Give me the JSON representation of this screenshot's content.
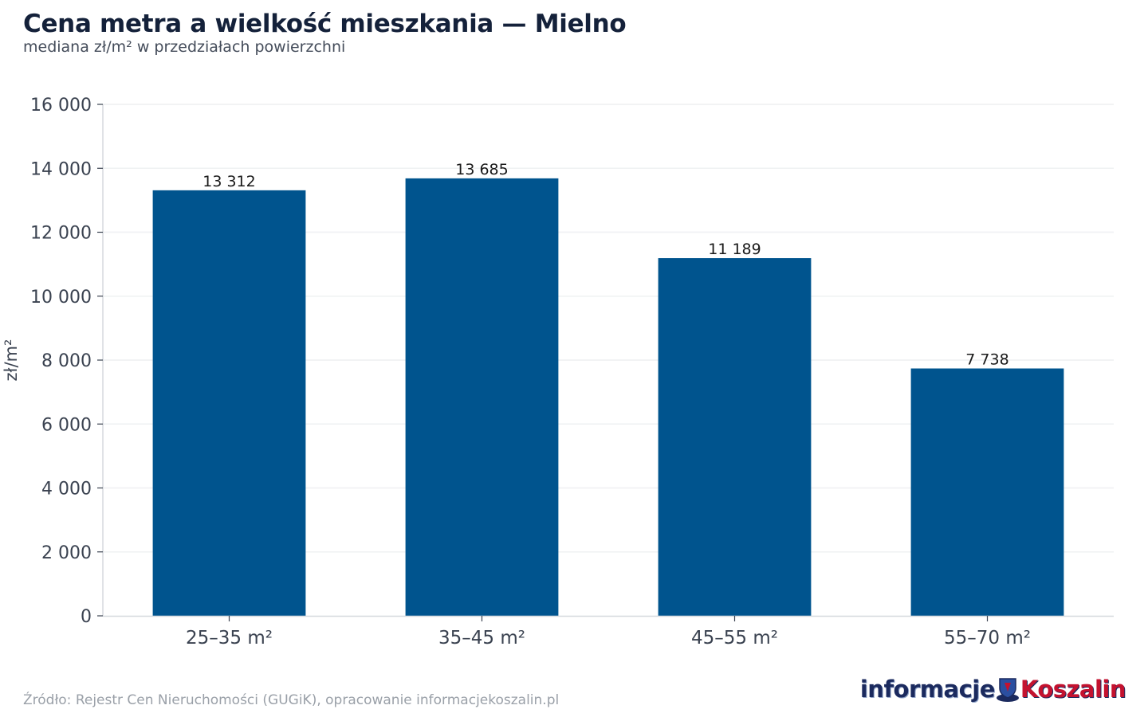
{
  "header": {
    "title": "Cena metra a wielkość mieszkania — Mielno",
    "subtitle": "mediana zł/m² w przedziałach powierzchni"
  },
  "chart_data": {
    "type": "bar",
    "categories": [
      "25–35 m²",
      "35–45 m²",
      "45–55 m²",
      "55–70 m²"
    ],
    "values": [
      13312,
      13685,
      11189,
      7738
    ],
    "value_labels": [
      "13 312",
      "13 685",
      "11 189",
      "7 738"
    ],
    "ylabel": "zł/m²",
    "ylim": [
      0,
      16000
    ],
    "yticks": [
      0,
      2000,
      4000,
      6000,
      8000,
      10000,
      12000,
      14000,
      16000
    ],
    "ytick_labels": [
      "0",
      "2 000",
      "4 000",
      "6 000",
      "8 000",
      "10 000",
      "12 000",
      "14 000",
      "16 000"
    ],
    "grid": true,
    "bar_color": "#00548e"
  },
  "footer": {
    "source": "Źródło: Rejestr Cen Nieruchomości (GUGiK), opracowanie informacjekoszalin.pl",
    "logo_text_left": "informacje",
    "logo_text_right": "Koszalin"
  },
  "colors": {
    "title": "#14213a",
    "bar": "#00548e",
    "grid": "#e3e5e8",
    "axis_text": "#3a4250"
  }
}
